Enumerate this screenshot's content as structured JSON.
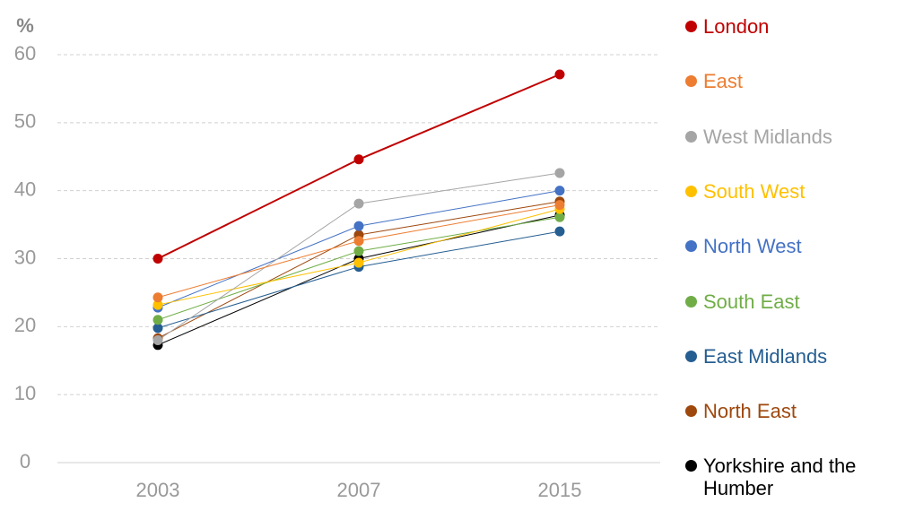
{
  "chart_data": {
    "type": "line",
    "y_label": "%",
    "categories": [
      "2003",
      "2007",
      "2015"
    ],
    "ylim": [
      0,
      60
    ],
    "yticks": [
      0,
      10,
      20,
      30,
      40,
      50,
      60
    ],
    "grid": true,
    "series": [
      {
        "name": "London",
        "color": "#c00000",
        "values": [
          30,
          44.6,
          57.1
        ]
      },
      {
        "name": "East",
        "color": "#ed7d31",
        "values": [
          24.3,
          32.6,
          37.9
        ]
      },
      {
        "name": "West Midlands",
        "color": "#a5a5a5",
        "values": [
          18,
          38.1,
          42.6
        ]
      },
      {
        "name": "South West",
        "color": "#ffc000",
        "values": [
          23.2,
          29.4,
          37.3
        ]
      },
      {
        "name": "North West",
        "color": "#4472c4",
        "values": [
          22.8,
          34.8,
          40
        ]
      },
      {
        "name": "South East",
        "color": "#70ad47",
        "values": [
          21,
          31.1,
          36.1
        ]
      },
      {
        "name": "East Midlands",
        "color": "#255e91",
        "values": [
          19.8,
          28.8,
          34
        ]
      },
      {
        "name": "North East",
        "color": "#9e480e",
        "values": [
          18.3,
          33.5,
          38.4
        ]
      },
      {
        "name": "Yorkshire and the Humber",
        "color": "#000000",
        "values": [
          17.3,
          30,
          36.4
        ]
      }
    ]
  }
}
